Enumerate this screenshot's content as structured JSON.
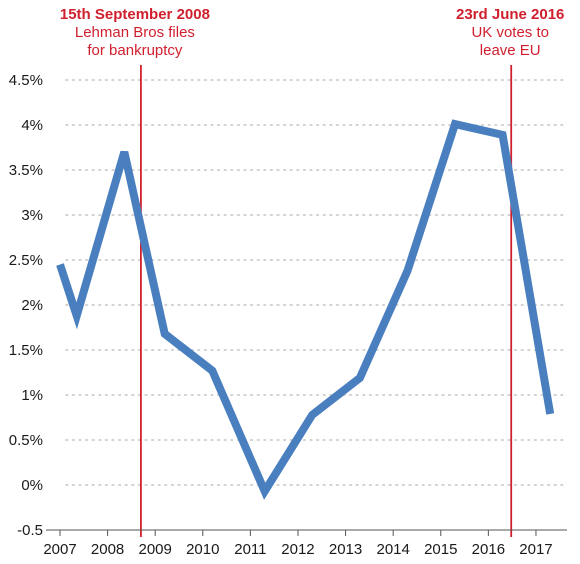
{
  "chart_data": {
    "type": "line",
    "title": "",
    "xlabel": "",
    "ylabel": "",
    "grid": true,
    "xlim": [
      2007,
      2017.4
    ],
    "ylim": [
      -0.5,
      4.5
    ],
    "x_ticks": [
      "2007",
      "2008",
      "2009",
      "2010",
      "2011",
      "2012",
      "2013",
      "2014",
      "2015",
      "2016",
      "2017"
    ],
    "y_ticks": [
      "-0.5",
      "0%",
      "0.5%",
      "1%",
      "1.5%",
      "2%",
      "2.5%",
      "3%",
      "3.5%",
      "4%",
      "4.5%"
    ],
    "series": [
      {
        "color": "#4a7fbf",
        "points": [
          {
            "x": 2007.0,
            "y": 2.45
          },
          {
            "x": 2007.35,
            "y": 1.88
          },
          {
            "x": 2008.35,
            "y": 3.7
          },
          {
            "x": 2009.2,
            "y": 1.68
          },
          {
            "x": 2010.2,
            "y": 1.27
          },
          {
            "x": 2011.3,
            "y": -0.07
          },
          {
            "x": 2012.3,
            "y": 0.78
          },
          {
            "x": 2013.3,
            "y": 1.19
          },
          {
            "x": 2014.3,
            "y": 2.38
          },
          {
            "x": 2015.3,
            "y": 4.01
          },
          {
            "x": 2016.3,
            "y": 3.89
          },
          {
            "x": 2017.3,
            "y": 0.79
          }
        ]
      }
    ],
    "annotations": [
      {
        "x": 2008.7,
        "color": "#d0202e",
        "title": "15th September 2008",
        "lines": [
          "Lehman Bros files",
          "for bankruptcy"
        ]
      },
      {
        "x": 2016.48,
        "color": "#d0202e",
        "title": "23rd June 2016",
        "lines": [
          "UK votes to",
          "leave EU"
        ]
      }
    ]
  }
}
